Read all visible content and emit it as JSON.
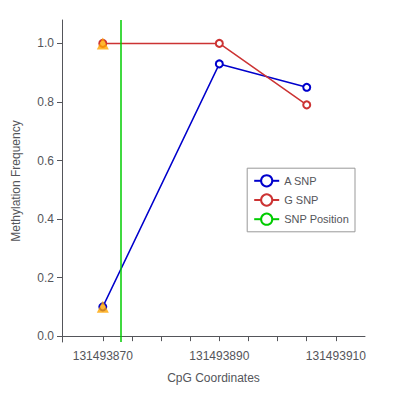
{
  "chart_data": {
    "type": "line",
    "xlabel": "CpG Coordinates",
    "ylabel": "Methylation Frequency",
    "x": [
      131493870,
      131493890,
      131493905
    ],
    "series": [
      {
        "name": "A SNP",
        "color": "#0000CC",
        "values": [
          0.1,
          0.93,
          0.85
        ],
        "marker": "circle"
      },
      {
        "name": "G SNP",
        "color": "#CC3333",
        "values": [
          1.0,
          1.0,
          0.79
        ],
        "marker": "circle"
      },
      {
        "name": "SNP Position",
        "type": "vline",
        "color": "#00CC00",
        "x": 131493873
      },
      {
        "type": "scatter",
        "color": "#FFA500",
        "marker": "triangle",
        "x": [
          131493870,
          131493870
        ],
        "values": [
          0.1,
          1.0
        ]
      }
    ],
    "xlim": [
      131493863,
      131493915
    ],
    "xticks": [
      131493870,
      {
        "value": 131493875,
        "label": null
      },
      {
        "value": 131493880,
        "label": null
      },
      {
        "value": 131493885,
        "label": null
      },
      131493890,
      {
        "value": 131493895,
        "label": null
      },
      {
        "value": 131493900,
        "label": null
      },
      {
        "value": 131493905,
        "label": null
      },
      131493910
    ],
    "ylim": [
      -0.02,
      1.08
    ],
    "yticks": [
      {
        "value": 0.0,
        "label": "0.0"
      },
      0.2,
      0.4,
      0.6,
      0.8,
      {
        "value": 1.0,
        "label": "1.0"
      }
    ],
    "grid": false,
    "legend": "right"
  }
}
